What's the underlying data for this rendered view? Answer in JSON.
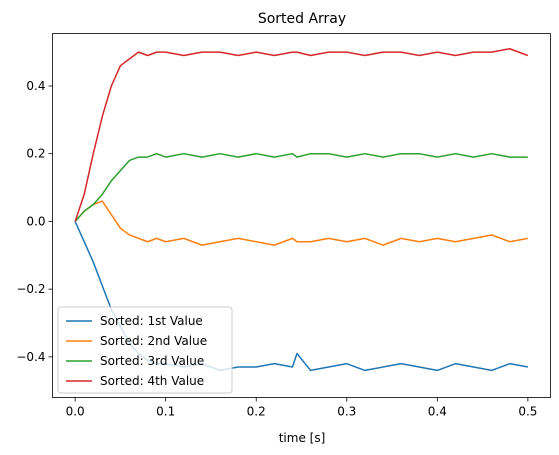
{
  "chart_data": {
    "type": "line",
    "title": "Sorted Array",
    "xlabel": "time [s]",
    "ylabel": "",
    "xlim": [
      -0.025,
      0.525
    ],
    "ylim": [
      -0.52,
      0.555
    ],
    "xticks": [
      0.0,
      0.1,
      0.2,
      0.3,
      0.4,
      0.5
    ],
    "xtick_labels": [
      "0.0",
      "0.1",
      "0.2",
      "0.3",
      "0.4",
      "0.5"
    ],
    "yticks": [
      -0.4,
      -0.2,
      0.0,
      0.2,
      0.4
    ],
    "ytick_labels": [
      "−0.4",
      "−0.2",
      "0.0",
      "0.2",
      "0.4"
    ],
    "grid": false,
    "legend_position": "lower-left",
    "x": [
      0.0,
      0.01,
      0.02,
      0.03,
      0.04,
      0.05,
      0.06,
      0.07,
      0.08,
      0.09,
      0.1,
      0.12,
      0.14,
      0.16,
      0.18,
      0.2,
      0.22,
      0.24,
      0.245,
      0.26,
      0.28,
      0.3,
      0.32,
      0.34,
      0.36,
      0.38,
      0.4,
      0.42,
      0.44,
      0.46,
      0.48,
      0.5
    ],
    "series": [
      {
        "name": "Sorted: 1st Value",
        "color": "#1f77b4",
        "values": [
          0.0,
          -0.06,
          -0.12,
          -0.19,
          -0.26,
          -0.31,
          -0.36,
          -0.39,
          -0.41,
          -0.42,
          -0.42,
          -0.43,
          -0.42,
          -0.44,
          -0.43,
          -0.43,
          -0.42,
          -0.43,
          -0.39,
          -0.44,
          -0.43,
          -0.42,
          -0.44,
          -0.43,
          -0.42,
          -0.43,
          -0.44,
          -0.42,
          -0.43,
          -0.44,
          -0.42,
          -0.43
        ]
      },
      {
        "name": "Sorted: 2nd Value",
        "color": "#ff7f0e",
        "values": [
          0.0,
          0.03,
          0.05,
          0.06,
          0.02,
          -0.02,
          -0.04,
          -0.05,
          -0.06,
          -0.05,
          -0.06,
          -0.05,
          -0.07,
          -0.06,
          -0.05,
          -0.06,
          -0.07,
          -0.05,
          -0.06,
          -0.06,
          -0.05,
          -0.06,
          -0.05,
          -0.07,
          -0.05,
          -0.06,
          -0.05,
          -0.06,
          -0.05,
          -0.04,
          -0.06,
          -0.05
        ]
      },
      {
        "name": "Sorted: 3rd Value",
        "color": "#2ca02c",
        "values": [
          0.0,
          0.03,
          0.05,
          0.08,
          0.12,
          0.15,
          0.18,
          0.19,
          0.19,
          0.2,
          0.19,
          0.2,
          0.19,
          0.2,
          0.19,
          0.2,
          0.19,
          0.2,
          0.19,
          0.2,
          0.2,
          0.19,
          0.2,
          0.19,
          0.2,
          0.2,
          0.19,
          0.2,
          0.19,
          0.2,
          0.19,
          0.19
        ]
      },
      {
        "name": "Sorted: 4th Value",
        "color": "#d62728",
        "values": [
          0.0,
          0.08,
          0.2,
          0.31,
          0.4,
          0.46,
          0.48,
          0.5,
          0.49,
          0.5,
          0.5,
          0.49,
          0.5,
          0.5,
          0.49,
          0.5,
          0.49,
          0.5,
          0.5,
          0.49,
          0.5,
          0.5,
          0.49,
          0.5,
          0.5,
          0.49,
          0.5,
          0.49,
          0.5,
          0.5,
          0.51,
          0.49
        ]
      }
    ]
  }
}
